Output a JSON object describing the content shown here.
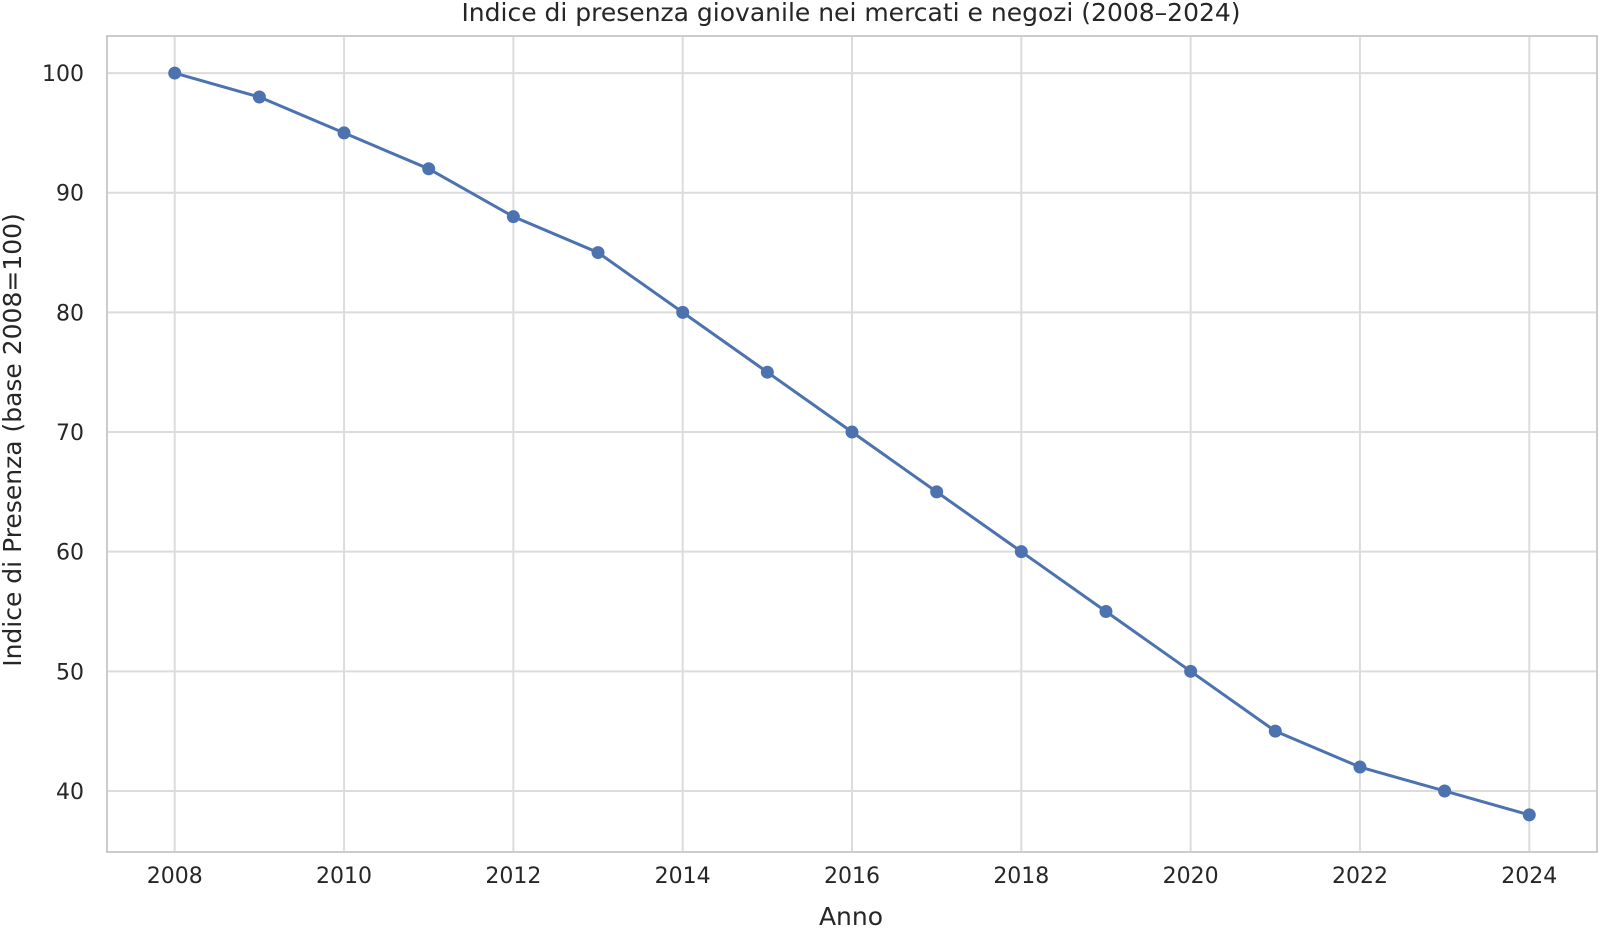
{
  "chart_data": {
    "type": "line",
    "title": "Indice di presenza giovanile nei mercati e negozi (2008–2024)",
    "xlabel": "Anno",
    "ylabel": "Indice di Presenza (base 2008=100)",
    "x": [
      2008,
      2009,
      2010,
      2011,
      2012,
      2013,
      2014,
      2015,
      2016,
      2017,
      2018,
      2019,
      2020,
      2021,
      2022,
      2023,
      2024
    ],
    "series": [
      {
        "values": [
          100,
          98,
          95,
          92,
          88,
          85,
          80,
          75,
          70,
          65,
          60,
          55,
          50,
          45,
          42,
          40,
          38
        ],
        "color": "#4c72b0"
      }
    ],
    "xlim": [
      2007.2,
      2024.8
    ],
    "ylim": [
      34.9,
      103.1
    ],
    "xticks": [
      "2008",
      "2010",
      "2012",
      "2014",
      "2016",
      "2018",
      "2020",
      "2022",
      "2024"
    ],
    "yticks": [
      "40",
      "50",
      "60",
      "70",
      "80",
      "90",
      "100"
    ],
    "grid": true,
    "legend": "none",
    "colors": {
      "grid": "#dcdcdc",
      "frame": "#cccccc",
      "text": "#262626"
    }
  }
}
